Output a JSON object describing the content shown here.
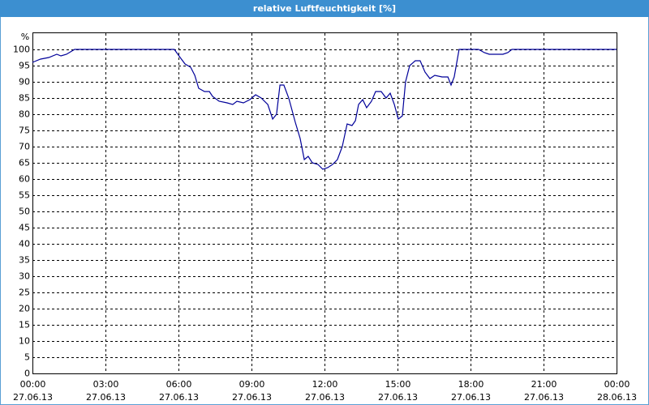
{
  "chart_data": {
    "type": "line",
    "title": "relative Luftfeuchtigkeit [%]",
    "y_unit_label": "%",
    "x": [
      0,
      0.33,
      0.67,
      1.0,
      1.17,
      1.4,
      1.73,
      5.83,
      6.07,
      6.27,
      6.5,
      6.67,
      6.83,
      7.07,
      7.27,
      7.4,
      7.67,
      8.0,
      8.23,
      8.4,
      8.67,
      8.93,
      9.17,
      9.4,
      9.67,
      9.87,
      10.03,
      10.17,
      10.33,
      10.53,
      10.8,
      11.0,
      11.17,
      11.33,
      11.5,
      11.73,
      11.93,
      12.13,
      12.33,
      12.53,
      12.73,
      12.93,
      13.13,
      13.27,
      13.4,
      13.57,
      13.73,
      13.93,
      14.1,
      14.33,
      14.53,
      14.7,
      14.87,
      15.03,
      15.2,
      15.33,
      15.5,
      15.73,
      15.93,
      16.13,
      16.33,
      16.53,
      16.83,
      17.07,
      17.2,
      17.33,
      17.53,
      17.87,
      18.13,
      18.33,
      18.57,
      18.77,
      19.07,
      19.33,
      19.53,
      19.7,
      20.0,
      20.33,
      24
    ],
    "series": [
      {
        "name": "relative Luftfeuchtigkeit",
        "color": "#000099",
        "values": [
          96,
          97,
          97.5,
          98.5,
          98,
          98.5,
          100,
          100,
          97.5,
          95.5,
          94.5,
          92,
          88,
          87,
          87,
          85.5,
          84,
          83.5,
          83,
          84,
          83.5,
          84.5,
          86,
          85,
          83,
          78.5,
          80,
          89,
          89,
          85,
          77.5,
          72.5,
          66,
          67,
          65,
          64.5,
          63,
          63.5,
          64.5,
          66,
          70,
          77,
          76.5,
          78,
          83,
          84.5,
          82,
          84,
          87,
          87,
          85,
          86.5,
          83,
          78.5,
          79.5,
          90,
          95,
          96.5,
          96.5,
          93,
          91,
          92,
          91.5,
          91.5,
          89,
          91.5,
          100,
          100,
          100,
          100,
          99,
          98.5,
          98.5,
          98.5,
          99,
          100,
          100,
          100,
          100
        ]
      }
    ],
    "xlim": [
      0,
      24
    ],
    "xticks": [
      {
        "value": 0,
        "label": "00:00"
      },
      {
        "value": 3,
        "label": "03:00"
      },
      {
        "value": 6,
        "label": "06:00"
      },
      {
        "value": 9,
        "label": "09:00"
      },
      {
        "value": 12,
        "label": "12:00"
      },
      {
        "value": 15,
        "label": "15:00"
      },
      {
        "value": 18,
        "label": "18:00"
      },
      {
        "value": 21,
        "label": "21:00"
      },
      {
        "value": 24,
        "label": "00:00"
      }
    ],
    "xtick_dates": [
      "27.06.13",
      "27.06.13",
      "27.06.13",
      "27.06.13",
      "27.06.13",
      "27.06.13",
      "27.06.13",
      "27.06.13",
      "28.06.13"
    ],
    "ylim": [
      0,
      105
    ],
    "yticks": [
      0,
      5,
      10,
      15,
      20,
      25,
      30,
      35,
      40,
      45,
      50,
      55,
      60,
      65,
      70,
      75,
      80,
      85,
      90,
      95,
      100
    ],
    "grid": true
  }
}
